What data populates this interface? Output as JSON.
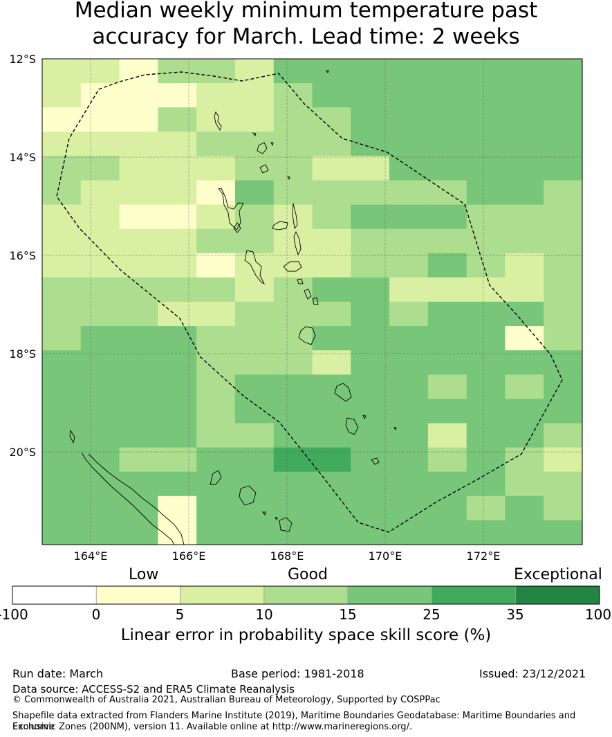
{
  "title_line1": "Median weekly minimum temperature past",
  "title_line2": "accuracy for March. Lead time: 2 weeks",
  "map": {
    "lat_labels": [
      "12°S",
      "14°S",
      "16°S",
      "18°S",
      "20°S"
    ],
    "lon_labels": [
      "164°E",
      "166°E",
      "168°E",
      "170°E",
      "172°E"
    ],
    "grid_rows": [
      "22133244444444",
      "21112234444444",
      "11132233444444",
      "22223333444444",
      "33222332244444",
      "32221433333443",
      "22112323444333",
      "22223322333333",
      "22221222334323",
      "33333234422223",
      "33322333434443",
      "34443334444413",
      "44443332444444",
      "44443444443434",
      "44443444444444",
      "44443344442443",
      "44334455443432",
      "44444444444433",
      "44414444444343",
      "44414444444444"
    ]
  },
  "colorbar": {
    "category_labels": [
      "Low",
      "Good",
      "Exceptional"
    ],
    "ticks": [
      "-100",
      "0",
      "5",
      "10",
      "15",
      "25",
      "35",
      "100"
    ],
    "colors": [
      "#ffffff",
      "#ffffcc",
      "#d9f0a3",
      "#addd8e",
      "#78c679",
      "#41ab5d",
      "#238443"
    ],
    "label": "Linear error in probability space skill score (%)"
  },
  "footer": {
    "run_date": "Run date: March",
    "base_period": "Base period: 1981-2018",
    "issued": "Issued: 23/12/2021",
    "data_source": "Data source: ACCESS-S2 and ERA5 Climate Reanalysis",
    "copyright": "© Commonwealth of Australia 2021, Australian Bureau of Meteorology, Supported by COSPPac",
    "shapefile_line1": "Shapefile data extracted from Flanders Marine Institute (2019), Maritime Boundaries Geodatabase: Maritime Boundaries and Exclusive",
    "shapefile_line2": "Economic Zones (200NM), version 11. Available online at http://www.marineregions.org/."
  }
}
